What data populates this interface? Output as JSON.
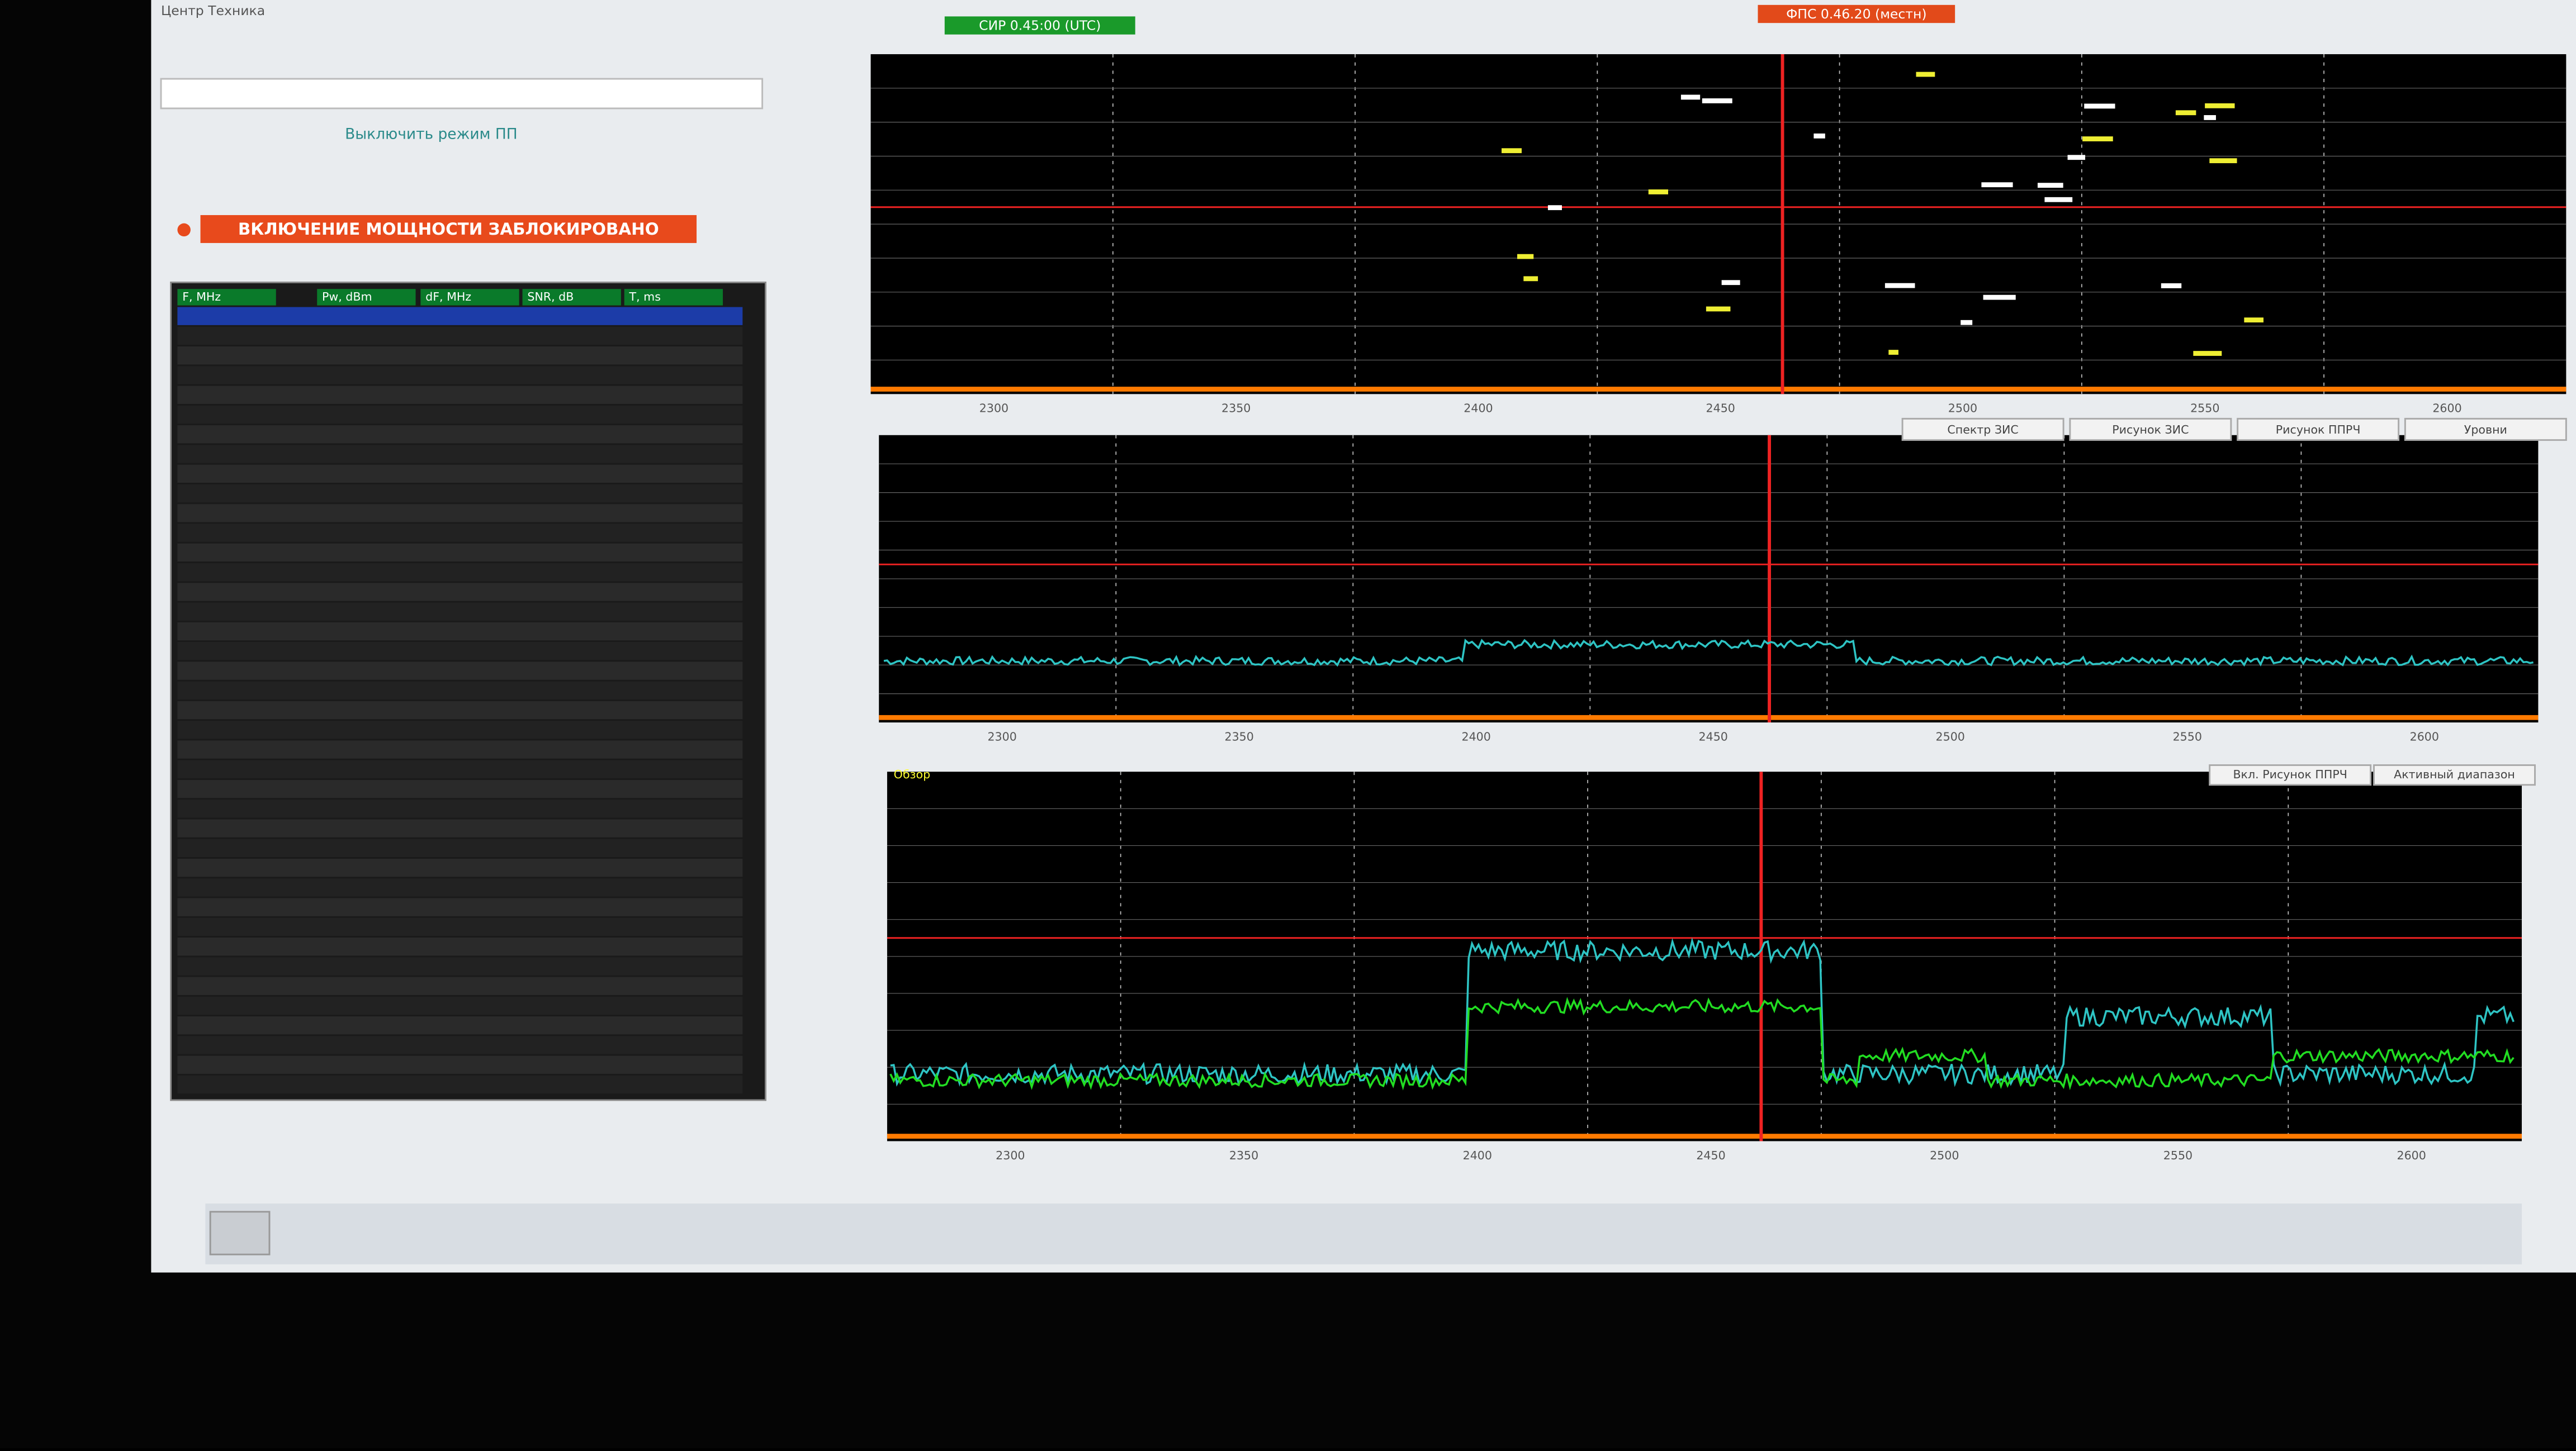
{
  "window": {
    "title": "Центр Техника"
  },
  "status": {
    "left": "СИР 0.45:00 (UTC)",
    "right": "ФПС 0.46.20 (местн)"
  },
  "left_panel": {
    "mode_label": "Выключить режим ПП",
    "banner": "ВКЛЮЧЕНИЕ МОЩНОСТИ ЗАБЛОКИРОВАНО",
    "table": {
      "headers": [
        "F, MHz",
        "Pw, dBm",
        "dF, MHz",
        "SNR, dB",
        "T, ms"
      ]
    }
  },
  "middle_chart": {
    "buttons": [
      "Спектр ЗИС",
      "Рисунок ЗИС",
      "Рисунок ППРЧ",
      "Уровни"
    ]
  },
  "bottom_chart": {
    "label": "Обзор",
    "buttons": [
      "Вкл. Рисунок ППРЧ",
      "Активный диапазон"
    ]
  },
  "x_labels": [
    "2300",
    "2350",
    "2400",
    "2450",
    "2500",
    "2550",
    "2600"
  ]
}
